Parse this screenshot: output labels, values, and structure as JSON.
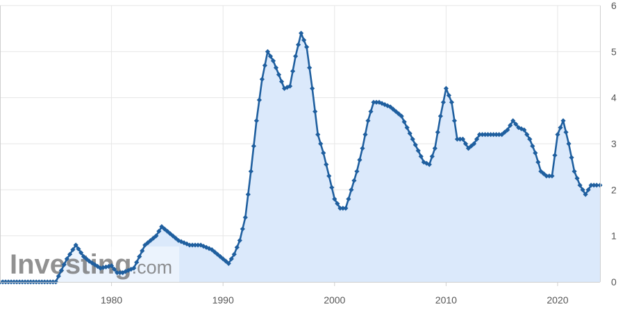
{
  "watermark": {
    "brand": "Investing",
    "suffix": ".com"
  },
  "colors": {
    "line": "#1f5f9f",
    "area": "#dbe9fb",
    "grid": "#e6e6e6",
    "axis": "#cfcfcf",
    "text": "#555555"
  },
  "chart_data": {
    "type": "area",
    "title": "",
    "xlabel": "",
    "ylabel": "",
    "xlim": [
      1970,
      2023.8
    ],
    "ylim": [
      0,
      6
    ],
    "x_ticks": [
      1980,
      1990,
      2000,
      2010,
      2020
    ],
    "y_ticks": [
      0,
      1,
      2,
      3,
      4,
      5,
      6
    ],
    "y_axis_side": "right",
    "grid": true,
    "legend": "none",
    "series": [
      {
        "markers": "diamond",
        "x": [
          1970,
          1972,
          1975,
          1976,
          1976.8,
          1977.5,
          1978,
          1979,
          1980,
          1980.5,
          1981,
          1982,
          1983,
          1984,
          1984.5,
          1985,
          1986,
          1987,
          1988,
          1989,
          1990,
          1990.5,
          1991,
          1991.5,
          1992,
          1992.5,
          1993,
          1993.5,
          1994,
          1994.5,
          1995,
          1995.5,
          1996,
          1996.5,
          1997,
          1997.5,
          1998,
          1998.5,
          1999,
          1999.5,
          2000,
          2000.5,
          2001,
          2001.5,
          2002,
          2002.5,
          2003,
          2003.5,
          2004,
          2005,
          2006,
          2007,
          2008,
          2008.5,
          2009,
          2009.5,
          2010,
          2010.5,
          2011,
          2011.5,
          2012,
          2012.5,
          2013,
          2014,
          2015,
          2015.5,
          2016,
          2016.5,
          2017,
          2017.5,
          2018,
          2018.5,
          2019,
          2019.5,
          2020,
          2020.5,
          2021,
          2021.5,
          2022,
          2022.5,
          2023,
          2023.5,
          2023.8
        ],
        "y": [
          0,
          0,
          0,
          0.5,
          0.8,
          0.55,
          0.45,
          0.3,
          0.35,
          0.2,
          0.2,
          0.3,
          0.8,
          1.0,
          1.2,
          1.1,
          0.9,
          0.8,
          0.8,
          0.7,
          0.5,
          0.4,
          0.6,
          0.9,
          1.4,
          2.4,
          3.5,
          4.4,
          5.0,
          4.8,
          4.5,
          4.2,
          4.25,
          4.9,
          5.4,
          5.1,
          4.2,
          3.2,
          2.8,
          2.3,
          1.8,
          1.6,
          1.6,
          2.0,
          2.4,
          2.9,
          3.5,
          3.9,
          3.9,
          3.8,
          3.6,
          3.1,
          2.6,
          2.55,
          2.9,
          3.6,
          4.2,
          3.9,
          3.1,
          3.1,
          2.9,
          3.0,
          3.2,
          3.2,
          3.2,
          3.3,
          3.5,
          3.35,
          3.3,
          3.1,
          2.8,
          2.4,
          2.3,
          2.3,
          3.2,
          3.5,
          3.0,
          2.4,
          2.1,
          1.9,
          2.1,
          2.1,
          2.1
        ]
      }
    ]
  }
}
